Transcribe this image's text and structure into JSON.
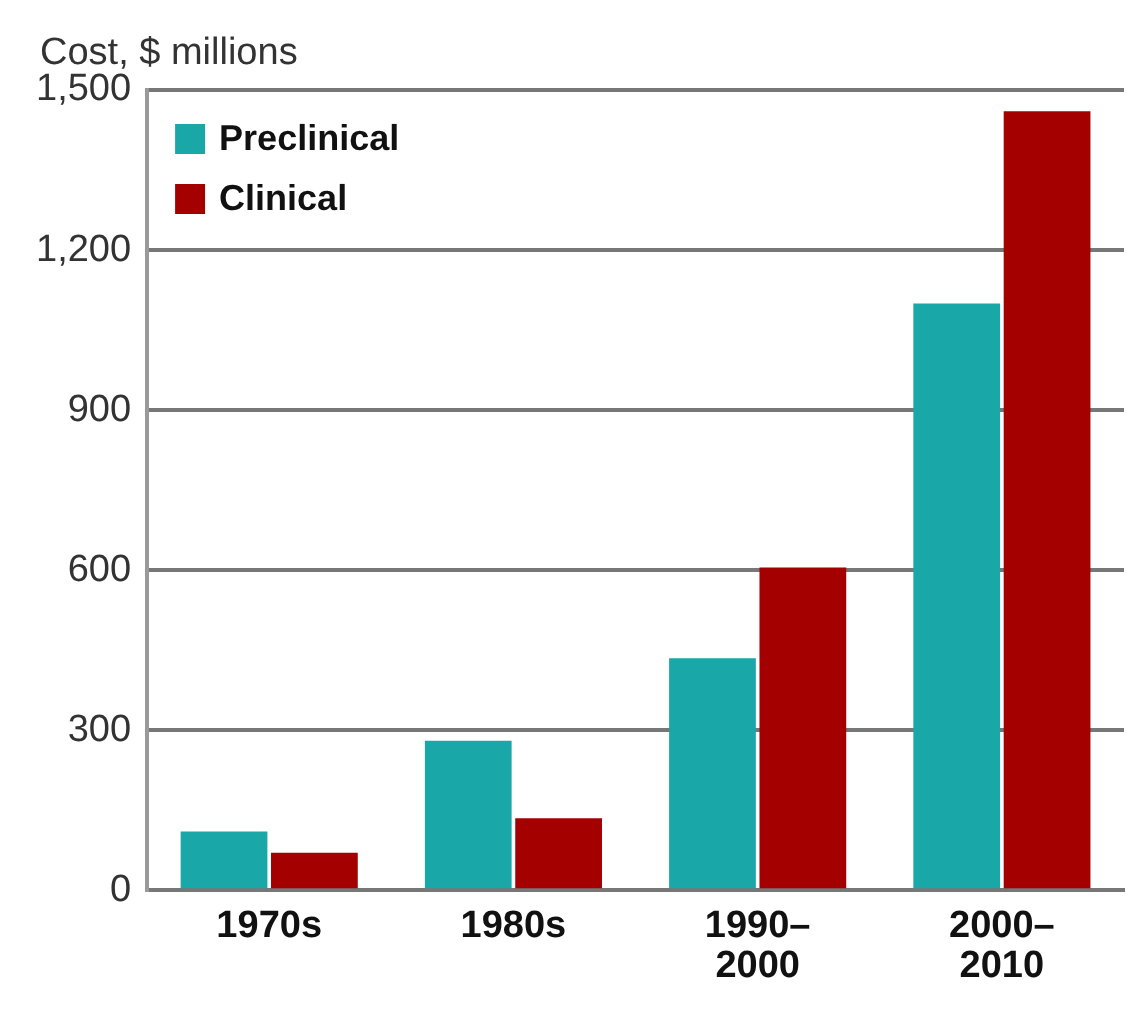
{
  "chart_data": {
    "type": "bar",
    "ylabel": "Cost, $ millions",
    "categories": [
      "1970s",
      "1980s",
      "1990–2000",
      "2000–2010"
    ],
    "series": [
      {
        "name": "Preclinical",
        "color": "#1aa7a8",
        "values": [
          110,
          280,
          435,
          1100
        ]
      },
      {
        "name": "Clinical",
        "color": "#a50000",
        "values": [
          70,
          135,
          605,
          1460
        ]
      }
    ],
    "ylim": [
      0,
      1500
    ],
    "yticks": [
      0,
      300,
      600,
      900,
      {
        "value": 1200,
        "label": "1,200"
      },
      {
        "value": 1500,
        "label": "1,500"
      }
    ],
    "grid": "y",
    "legend": "top left"
  }
}
